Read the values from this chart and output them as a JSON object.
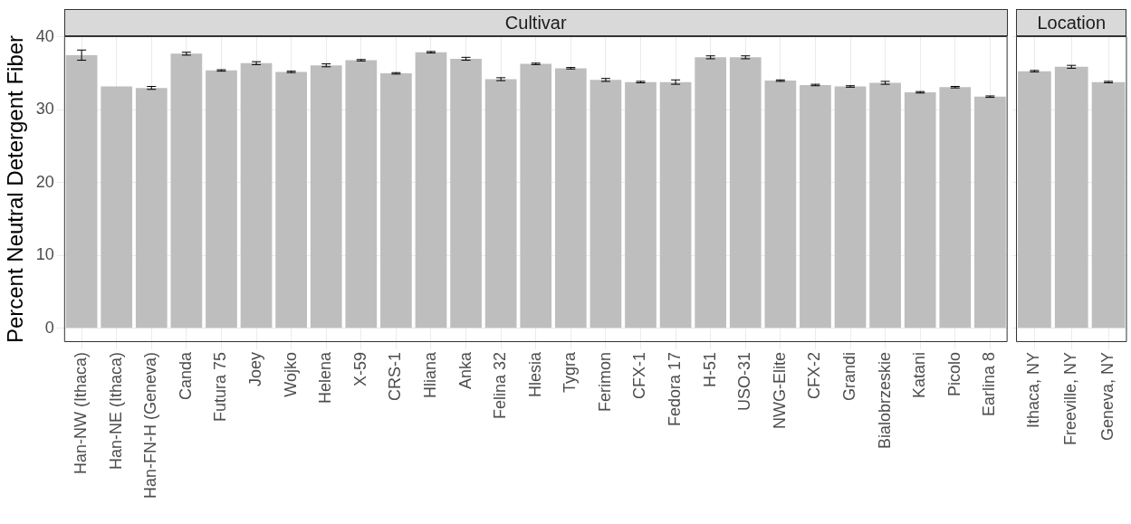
{
  "chart_data": [
    {
      "type": "bar",
      "title": "Cultivar",
      "ylabel": "Percent Neutral Detergent Fiber",
      "categories": [
        "Han-NW (Ithaca)",
        "Han-NE (Ithaca)",
        "Han-FN-H (Geneva)",
        "Canda",
        "Futura 75",
        "Joey",
        "Wojko",
        "Helena",
        "X-59",
        "CRS-1",
        "Hliana",
        "Anka",
        "Felina 32",
        "Hlesia",
        "Tygra",
        "Ferimon",
        "CFX-1",
        "Fedora 17",
        "H-51",
        "USO-31",
        "NWG-Elite",
        "CFX-2",
        "Grandi",
        "Bialobrzeskie",
        "Katani",
        "Picolo",
        "Earlina 8"
      ],
      "values": [
        37.5,
        33.2,
        33.0,
        37.7,
        35.4,
        36.4,
        35.2,
        36.1,
        36.8,
        35.0,
        37.9,
        37.0,
        34.2,
        36.3,
        35.7,
        34.1,
        33.8,
        33.8,
        37.2,
        37.2,
        34.0,
        33.4,
        33.2,
        33.7,
        32.4,
        33.1,
        31.8
      ],
      "errors": [
        0.7,
        null,
        0.2,
        0.2,
        0.1,
        0.2,
        0.1,
        0.2,
        0.1,
        0.1,
        0.1,
        0.2,
        0.2,
        0.1,
        0.1,
        0.2,
        0.1,
        0.3,
        0.2,
        0.2,
        0.1,
        0.1,
        0.1,
        0.2,
        0.1,
        0.1,
        0.1
      ],
      "color": "#bebebe",
      "ylim": [
        -1.9,
        40.1
      ],
      "yticks": [
        0,
        10,
        20,
        30,
        40
      ],
      "grid": true
    },
    {
      "type": "bar",
      "title": "Location",
      "categories": [
        "Ithaca, NY",
        "Freeville, NY",
        "Geneva, NY"
      ],
      "values": [
        35.3,
        35.9,
        33.8
      ],
      "errors": [
        0.1,
        0.2,
        0.1
      ],
      "color": "#bebebe",
      "ylim": [
        -1.9,
        40.1
      ],
      "yticks": [
        0,
        10,
        20,
        30,
        40
      ],
      "grid": true,
      "tick_labels": "x"
    }
  ]
}
